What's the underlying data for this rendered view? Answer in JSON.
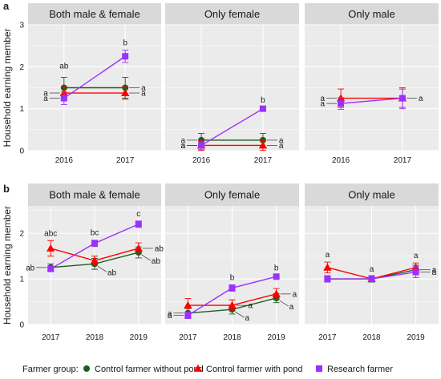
{
  "chart_data": [
    {
      "type": "line",
      "panel_letter": "a",
      "ylabel": "Household earning member",
      "ylim": [
        0,
        3
      ],
      "yticks": [
        0,
        1,
        2,
        3
      ],
      "x": [
        "2016",
        "2017"
      ],
      "facets": [
        {
          "title": "Both male & female",
          "series": [
            {
              "name": "Control farmer without pond",
              "values": [
                1.5,
                1.5
              ],
              "err": [
                0.25,
                0.25
              ],
              "labels": [
                "",
                "a"
              ],
              "label_side": [
                "right",
                "right"
              ]
            },
            {
              "name": "Control farmer with pond",
              "values": [
                1.375,
                1.375
              ],
              "err": [
                0.15,
                0.15
              ],
              "labels": [
                "a",
                "a"
              ],
              "label_side": [
                "left",
                "right"
              ]
            },
            {
              "name": "Research farmer",
              "values": [
                1.25,
                2.25
              ],
              "err": [
                0.15,
                0.15
              ],
              "labels": [
                "a",
                "b"
              ],
              "label_side": [
                "left",
                "above"
              ]
            }
          ],
          "annotations": [
            {
              "x": "2016",
              "text": "ab",
              "y": 1.5,
              "pos": "above"
            }
          ]
        },
        {
          "title": "Only female",
          "series": [
            {
              "name": "Control farmer without pond",
              "values": [
                0.25,
                0.25
              ],
              "err": [
                0.16,
                0.16
              ],
              "labels": [
                "a",
                "a"
              ],
              "label_side": [
                "left",
                "right"
              ]
            },
            {
              "name": "Control farmer with pond",
              "values": [
                0.125,
                0.125
              ],
              "err": [
                0.12,
                0.12
              ],
              "labels": [
                "a",
                "a"
              ],
              "label_side": [
                "left",
                "right"
              ]
            },
            {
              "name": "Research farmer",
              "values": [
                0.125,
                1.0
              ],
              "err": [
                0.1,
                0.03
              ],
              "labels": [
                "a",
                "b"
              ],
              "label_side": [
                "left",
                "above"
              ]
            }
          ],
          "annotations": []
        },
        {
          "title": "Only male",
          "series": [
            {
              "name": "Control farmer without pond",
              "values": [
                null,
                null
              ],
              "err": [
                0,
                0
              ],
              "labels": [
                "",
                ""
              ],
              "label_side": [
                "left",
                "right"
              ]
            },
            {
              "name": "Control farmer with pond",
              "values": [
                1.25,
                1.25
              ],
              "err": [
                0.22,
                0.22
              ],
              "labels": [
                "a",
                "a"
              ],
              "label_side": [
                "left",
                "right"
              ]
            },
            {
              "name": "Research farmer",
              "values": [
                1.125,
                1.25
              ],
              "err": [
                0.14,
                0.25
              ],
              "labels": [
                "a",
                ""
              ],
              "label_side": [
                "left",
                "right"
              ]
            }
          ],
          "annotations": []
        }
      ]
    },
    {
      "type": "line",
      "panel_letter": "b",
      "ylabel": "Household earning member",
      "ylim": [
        0,
        2.6
      ],
      "yticks": [
        0,
        1,
        2
      ],
      "x": [
        "2017",
        "2018",
        "2019"
      ],
      "facets": [
        {
          "title": "Both male & female",
          "series": [
            {
              "name": "Control farmer without pond",
              "values": [
                1.25,
                1.33,
                1.58
              ],
              "err": [
                0.08,
                0.12,
                0.12
              ],
              "labels": [
                "ab",
                "ab",
                "ab"
              ],
              "label_side": [
                "left",
                "below-right",
                "below-right"
              ]
            },
            {
              "name": "Control farmer with pond",
              "values": [
                1.67,
                1.4,
                1.67
              ],
              "err": [
                0.17,
                0.1,
                0.12
              ],
              "labels": [
                "abc",
                "",
                "ab"
              ],
              "label_side": [
                "above",
                "right",
                "right"
              ]
            },
            {
              "name": "Research farmer",
              "values": [
                1.22,
                1.78,
                2.2
              ],
              "err": [
                0.06,
                0.07,
                0.07
              ],
              "labels": [
                "",
                "bc",
                "c"
              ],
              "label_side": [
                "left",
                "above",
                "above"
              ]
            }
          ],
          "annotations": []
        },
        {
          "title": "Only female",
          "series": [
            {
              "name": "Control farmer without pond",
              "values": [
                0.25,
                0.33,
                0.58
              ],
              "err": [
                0.1,
                0.1,
                0.1
              ],
              "labels": [
                "a",
                "a",
                "a"
              ],
              "label_side": [
                "left",
                "below-right",
                "below-right"
              ]
            },
            {
              "name": "Control farmer with pond",
              "values": [
                0.42,
                0.42,
                0.67
              ],
              "err": [
                0.15,
                0.12,
                0.12
              ],
              "labels": [
                "",
                "a",
                "a"
              ],
              "label_side": [
                "left",
                "right",
                "right"
              ]
            },
            {
              "name": "Research farmer",
              "values": [
                0.2,
                0.8,
                1.05
              ],
              "err": [
                0.07,
                0.07,
                0.03
              ],
              "labels": [
                "a",
                "b",
                "b"
              ],
              "label_side": [
                "left",
                "above",
                "above"
              ]
            }
          ],
          "annotations": []
        },
        {
          "title": "Only male",
          "series": [
            {
              "name": "Control farmer without pond",
              "values": [
                1.0,
                1.0,
                1.2
              ],
              "err": [
                0.07,
                0.07,
                0.1
              ],
              "labels": [
                "",
                "",
                "a"
              ],
              "label_side": [
                "left",
                "right",
                "right"
              ]
            },
            {
              "name": "Control farmer with pond",
              "values": [
                1.25,
                1.0,
                1.25
              ],
              "err": [
                0.12,
                0.05,
                0.1
              ],
              "labels": [
                "a",
                "a",
                "a"
              ],
              "label_side": [
                "above",
                "above",
                "above"
              ]
            },
            {
              "name": "Research farmer",
              "values": [
                1.0,
                1.0,
                1.15
              ],
              "err": [
                0.07,
                0.05,
                0.12
              ],
              "labels": [
                "",
                "",
                "a"
              ],
              "label_side": [
                "left",
                "right",
                "right"
              ]
            }
          ],
          "annotations": []
        }
      ]
    }
  ],
  "legend": {
    "title": "Farmer group:",
    "placement": "bottom",
    "items": [
      {
        "name": "Control farmer without pond",
        "color": "#1b5e20",
        "shape": "circle"
      },
      {
        "name": "Control farmer with pond",
        "color": "#ff0000",
        "shape": "triangle"
      },
      {
        "name": "Research farmer",
        "color": "#9b30ff",
        "shape": "square"
      }
    ]
  },
  "colors": {
    "panel_bg": "#ebebeb",
    "strip_bg": "#d9d9d9",
    "grid": "#ffffff"
  }
}
